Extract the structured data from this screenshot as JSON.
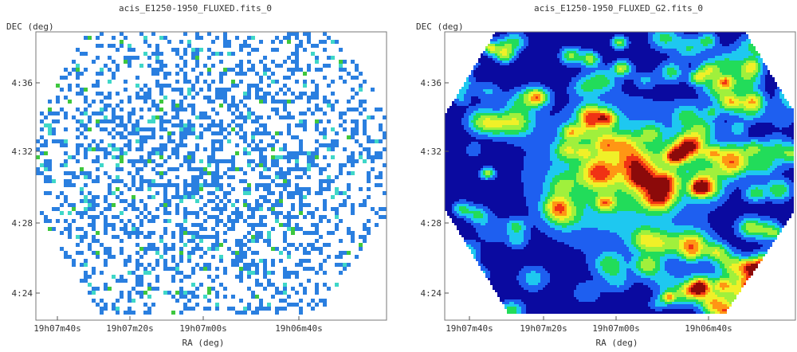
{
  "chart_data": [
    {
      "type": "heatmap",
      "title": "acis_E1250-1950_FLUXED.fits_0",
      "xlabel": "RA (deg)",
      "ylabel": "DEC (deg)",
      "x_ticks": [
        "19h07m40s",
        "19h07m20s",
        "19h07m00s",
        "19h06m40s"
      ],
      "y_ticks": [
        "4:36",
        "4:32",
        "4:28",
        "4:24"
      ],
      "grid": false,
      "style": "sparse",
      "colors": {
        "low": "#2a7fe0",
        "mid": "#3fd7c8",
        "high": "#3ec73e"
      }
    },
    {
      "type": "heatmap",
      "title": "acis_E1250-1950_FLUXED_G2.fits_0",
      "xlabel": "RA (deg)",
      "ylabel": "DEC (deg)",
      "x_ticks": [
        "19h07m40s",
        "19h07m20s",
        "19h07m00s",
        "19h06m40s"
      ],
      "y_ticks": [
        "4:36",
        "4:32",
        "4:28",
        "4:24"
      ],
      "grid": false,
      "style": "smoothed",
      "colormap": [
        "#0a0aa0",
        "#1e5ff0",
        "#1ec8f0",
        "#22dc5a",
        "#a0f03c",
        "#f0f028",
        "#ff9614",
        "#f03214",
        "#8c0a0a"
      ]
    }
  ]
}
